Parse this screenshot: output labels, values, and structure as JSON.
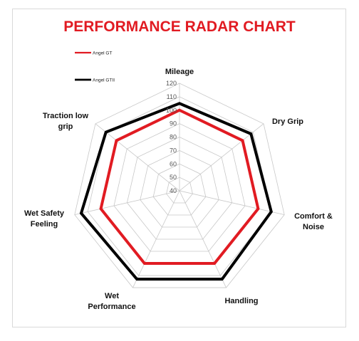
{
  "chart_data": {
    "type": "radar",
    "title": "PERFORMANCE RADAR CHART",
    "axes": [
      "Mileage",
      "Dry Grip",
      "Comfort & Noise",
      "Handling",
      "Wet Performance",
      "Wet Safety Feeling",
      "Traction low grip"
    ],
    "axis_label_lines": [
      [
        "Mileage"
      ],
      [
        "Dry Grip"
      ],
      [
        "Comfort &",
        "Noise"
      ],
      [
        "Handling"
      ],
      [
        "Wet",
        "Performance"
      ],
      [
        "Wet Safety",
        "Feeling"
      ],
      [
        "Traction low",
        "grip"
      ]
    ],
    "rlim": [
      40,
      120
    ],
    "ticks": [
      40,
      50,
      60,
      70,
      80,
      90,
      100,
      110,
      120
    ],
    "tick_labels": [
      "40",
      "50",
      "60",
      "70",
      "80",
      "90",
      "100",
      "110",
      "120"
    ],
    "series": [
      {
        "name": "Angel GT",
        "color": "#e11b22",
        "values": [
          100,
          100,
          100,
          100,
          100,
          100,
          100
        ]
      },
      {
        "name": "Angel GTII",
        "color": "#000000",
        "values": [
          105,
          108,
          110,
          113,
          113,
          115,
          110
        ]
      }
    ],
    "grid": true,
    "legend_position": "top-left"
  }
}
